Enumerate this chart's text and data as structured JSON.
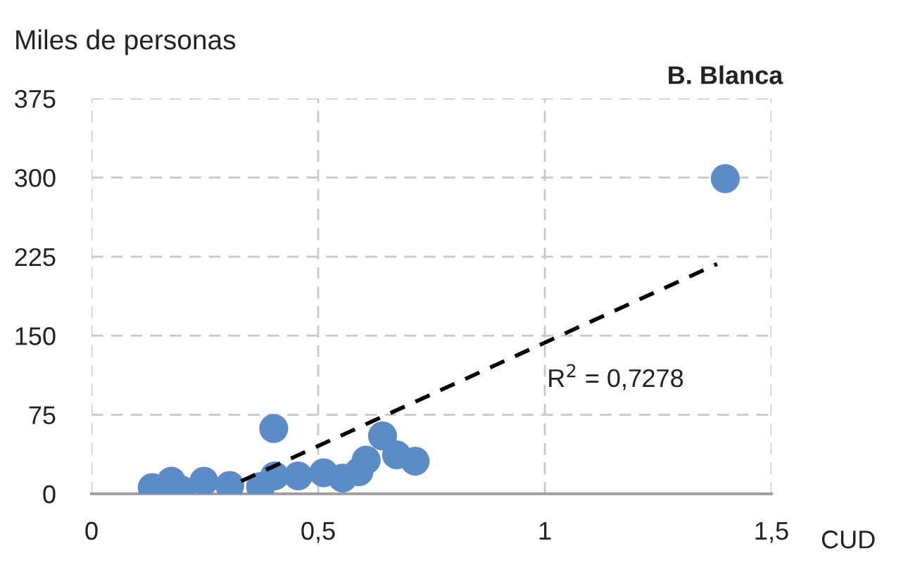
{
  "chart_data": {
    "type": "scatter",
    "ylabel": "Miles de personas",
    "xlabel": "CUD",
    "xlim": [
      0,
      1.5
    ],
    "xticks": [
      0,
      {
        "value": 0.5,
        "label": "0,5"
      },
      1,
      {
        "value": 1.5,
        "label": "1,5"
      }
    ],
    "ylim": [
      0,
      375
    ],
    "yticks": [
      0,
      75,
      150,
      225,
      300,
      375
    ],
    "grid": true,
    "series": [
      {
        "marker": "circle",
        "color": "#5b8cc8",
        "x": [
          0.134,
          0.176,
          0.197,
          0.248,
          0.305,
          0.373,
          0.402,
          0.404,
          0.456,
          0.512,
          0.554,
          0.59,
          0.606,
          0.642,
          0.673,
          0.714,
          1.398
        ],
        "values": [
          6,
          12,
          4,
          12,
          8,
          7,
          62,
          17,
          17,
          20,
          15,
          21,
          32,
          55,
          37,
          31,
          299
        ]
      },
      {
        "type": "line",
        "color": "#000000",
        "line_style": "dashed",
        "x": [
          0.33,
          1.38
        ],
        "values": [
          12,
          218
        ]
      }
    ],
    "annotations": [
      "B. Blanca",
      "R$^{2}$ = 0,7278"
    ]
  }
}
